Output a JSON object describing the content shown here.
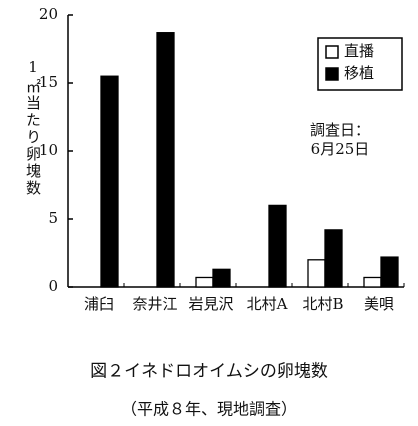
{
  "chart_data": {
    "type": "bar",
    "ylabel": "1㎡当たり卵塊数",
    "categories": [
      "浦臼",
      "奈井江",
      "岩見沢",
      "北村A",
      "北村B",
      "美唄"
    ],
    "series": [
      {
        "name": "直播",
        "color": "#ffffff",
        "values": [
          0,
          0,
          0.7,
          0,
          2.0,
          0.7
        ]
      },
      {
        "name": "移植",
        "color": "#000000",
        "values": [
          15.5,
          18.7,
          1.3,
          6.0,
          4.2,
          2.2
        ]
      }
    ],
    "ylim": [
      0,
      20
    ],
    "yticks": [
      0,
      5,
      10,
      15,
      20
    ],
    "annotations": [
      "調査日：",
      "6月25日"
    ],
    "caption": [
      "図２イネドロオイムシの卵塊数",
      "（平成８年、現地調査）"
    ]
  }
}
